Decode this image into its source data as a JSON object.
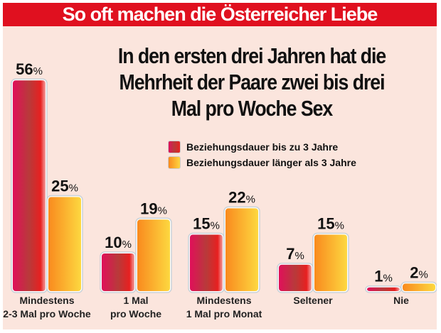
{
  "header": {
    "title": "So oft machen die Österreicher Liebe"
  },
  "chart_data": {
    "type": "bar",
    "title": "So oft machen die Österreicher Liebe",
    "subtitle": "In den ersten drei Jahren hat die Mehrheit der Paare zwei bis drei Mal pro Woche Sex",
    "categories": [
      [
        "Mindestens",
        "2-3 Mal pro Woche"
      ],
      [
        "1 Mal",
        "pro Woche"
      ],
      [
        "Mindestens",
        "1 Mal pro Monat"
      ],
      [
        "Seltener"
      ],
      [
        "Nie"
      ]
    ],
    "series": [
      {
        "name": "Beziehungsdauer bis zu 3 Jahre",
        "values": [
          56,
          10,
          15,
          7,
          1
        ],
        "color": "#d01a3a"
      },
      {
        "name": "Beziehungsdauer länger als 3 Jahre",
        "values": [
          25,
          19,
          22,
          15,
          2
        ],
        "color": "#fbb030"
      }
    ],
    "unit": "%",
    "ylim": [
      0,
      56
    ],
    "grid": false,
    "legend": "top-right"
  }
}
